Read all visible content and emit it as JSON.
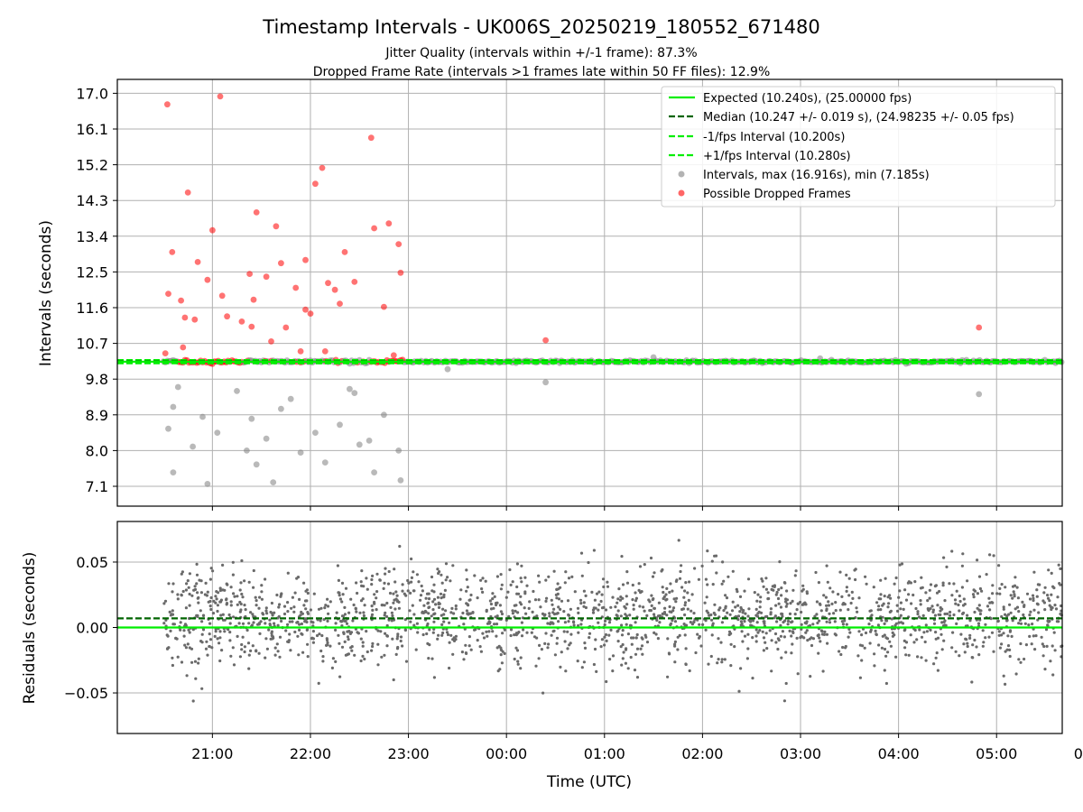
{
  "chart_data": {
    "type": "scatter",
    "title": "Timestamp Intervals - UK006S_20250219_180552_671480",
    "subtitle_lines": [
      "Jitter Quality (intervals within +/-1 frame): 87.3%",
      "Dropped Frame Rate (intervals >1 frames late within 50 FF files): 12.9%"
    ],
    "xlabel": "Time (UTC)",
    "x_ticks": [
      "21:00",
      "22:00",
      "23:00",
      "00:00",
      "01:00",
      "02:00",
      "03:00",
      "04:00",
      "05:00",
      "06:00"
    ],
    "x_range_hours": [
      20.03,
      29.67
    ],
    "colors": {
      "expected": "#00ee00",
      "median": "#006400",
      "intervals": "#808080",
      "dropped": "#ff0000",
      "grid": "#b0b0b0"
    },
    "top_panel": {
      "ylabel": "Intervals (seconds)",
      "ylim": [
        6.6,
        17.35
      ],
      "y_ticks": [
        "17.0",
        "16.1",
        "15.2",
        "14.3",
        "13.4",
        "12.5",
        "11.6",
        "10.7",
        "9.8",
        "8.9",
        "8.0",
        "7.1"
      ],
      "y_tick_values": [
        17.0,
        16.1,
        15.2,
        14.3,
        13.4,
        12.5,
        11.6,
        10.7,
        9.8,
        8.9,
        8.0,
        7.1
      ],
      "expected": 10.24,
      "median": 10.247,
      "minus_one_fps": 10.2,
      "plus_one_fps": 10.28,
      "max_interval": 16.916,
      "min_interval": 7.185,
      "noisy_period_hours": [
        20.5,
        22.95
      ],
      "stable_period_hours": [
        22.95,
        29.67
      ],
      "legend": {
        "placement": "top-right",
        "entries": [
          {
            "label": "Expected (10.240s), (25.00000 fps)",
            "style": "solid",
            "color": "#00ee00"
          },
          {
            "label": "Median (10.247 +/- 0.019 s), (24.98235 +/- 0.05 fps)",
            "style": "dashed",
            "color": "#006400"
          },
          {
            "label": "-1/fps Interval (10.200s)",
            "style": "dashed",
            "color": "#00ee00"
          },
          {
            "label": "+1/fps Interval (10.280s)",
            "style": "dashed",
            "color": "#00ee00"
          },
          {
            "label": "Intervals, max (16.916s), min (7.185s)",
            "style": "marker",
            "color": "#808080"
          },
          {
            "label": "Possible Dropped Frames",
            "style": "marker",
            "color": "#ff0000"
          }
        ]
      },
      "outliers": [
        {
          "x": 20.54,
          "y": 16.72
        },
        {
          "x": 21.08,
          "y": 16.92
        },
        {
          "x": 22.62,
          "y": 15.88
        },
        {
          "x": 22.12,
          "y": 15.12
        },
        {
          "x": 22.05,
          "y": 14.72
        },
        {
          "x": 20.75,
          "y": 14.5
        },
        {
          "x": 21.45,
          "y": 14.0
        },
        {
          "x": 22.8,
          "y": 13.72
        },
        {
          "x": 22.65,
          "y": 13.6
        },
        {
          "x": 21.0,
          "y": 13.55
        },
        {
          "x": 21.65,
          "y": 13.65
        },
        {
          "x": 22.9,
          "y": 13.2
        },
        {
          "x": 20.59,
          "y": 13.0
        },
        {
          "x": 21.95,
          "y": 12.8
        },
        {
          "x": 22.35,
          "y": 13.0
        },
        {
          "x": 20.85,
          "y": 12.75
        },
        {
          "x": 21.7,
          "y": 12.72
        },
        {
          "x": 22.92,
          "y": 12.48
        },
        {
          "x": 21.38,
          "y": 12.45
        },
        {
          "x": 22.18,
          "y": 12.22
        },
        {
          "x": 20.55,
          "y": 11.95
        },
        {
          "x": 20.95,
          "y": 12.3
        },
        {
          "x": 21.55,
          "y": 12.38
        },
        {
          "x": 21.85,
          "y": 12.1
        },
        {
          "x": 22.25,
          "y": 12.05
        },
        {
          "x": 22.45,
          "y": 12.25
        },
        {
          "x": 20.68,
          "y": 11.78
        },
        {
          "x": 21.1,
          "y": 11.9
        },
        {
          "x": 21.42,
          "y": 11.8
        },
        {
          "x": 21.95,
          "y": 11.55
        },
        {
          "x": 22.3,
          "y": 11.7
        },
        {
          "x": 22.75,
          "y": 11.62
        },
        {
          "x": 20.72,
          "y": 11.35
        },
        {
          "x": 21.3,
          "y": 11.25
        },
        {
          "x": 22.0,
          "y": 11.45
        },
        {
          "x": 20.82,
          "y": 11.3
        },
        {
          "x": 21.15,
          "y": 11.38
        },
        {
          "x": 21.75,
          "y": 11.1
        },
        {
          "x": 21.4,
          "y": 11.12
        },
        {
          "x": 20.7,
          "y": 10.6
        },
        {
          "x": 21.6,
          "y": 10.75
        },
        {
          "x": 22.15,
          "y": 10.5
        },
        {
          "x": 20.52,
          "y": 10.45
        },
        {
          "x": 21.9,
          "y": 10.5
        },
        {
          "x": 22.85,
          "y": 10.4
        },
        {
          "x": 20.65,
          "y": 9.6
        },
        {
          "x": 21.25,
          "y": 9.5
        },
        {
          "x": 22.4,
          "y": 9.55
        },
        {
          "x": 21.8,
          "y": 9.3
        },
        {
          "x": 22.45,
          "y": 9.45
        },
        {
          "x": 20.6,
          "y": 9.1
        },
        {
          "x": 20.9,
          "y": 8.85
        },
        {
          "x": 21.4,
          "y": 8.8
        },
        {
          "x": 21.7,
          "y": 9.05
        },
        {
          "x": 22.3,
          "y": 8.65
        },
        {
          "x": 22.75,
          "y": 8.9
        },
        {
          "x": 20.55,
          "y": 8.55
        },
        {
          "x": 21.05,
          "y": 8.45
        },
        {
          "x": 21.55,
          "y": 8.3
        },
        {
          "x": 22.05,
          "y": 8.45
        },
        {
          "x": 22.6,
          "y": 8.25
        },
        {
          "x": 20.8,
          "y": 8.1
        },
        {
          "x": 21.35,
          "y": 8.0
        },
        {
          "x": 21.9,
          "y": 7.95
        },
        {
          "x": 22.5,
          "y": 8.15
        },
        {
          "x": 22.9,
          "y": 8.0
        },
        {
          "x": 20.6,
          "y": 7.45
        },
        {
          "x": 21.45,
          "y": 7.65
        },
        {
          "x": 22.15,
          "y": 7.7
        },
        {
          "x": 22.65,
          "y": 7.45
        },
        {
          "x": 20.95,
          "y": 7.16
        },
        {
          "x": 21.62,
          "y": 7.2
        },
        {
          "x": 22.92,
          "y": 7.25
        },
        {
          "x": 23.4,
          "y": 10.05
        },
        {
          "x": 24.4,
          "y": 10.78
        },
        {
          "x": 24.4,
          "y": 9.72
        },
        {
          "x": 28.82,
          "y": 11.1
        },
        {
          "x": 28.82,
          "y": 9.42
        },
        {
          "x": 25.5,
          "y": 10.35
        },
        {
          "x": 27.2,
          "y": 10.32
        }
      ]
    },
    "bottom_panel": {
      "ylabel": "Residuals (seconds)",
      "ylim": [
        -0.081,
        0.081
      ],
      "y_ticks": [
        "0.05",
        "0.00",
        "−0.05"
      ],
      "y_tick_values": [
        0.05,
        0.0,
        -0.05
      ],
      "expected_residual": 0.0,
      "median_residual": 0.007,
      "residual_spread_sd": 0.019
    }
  }
}
